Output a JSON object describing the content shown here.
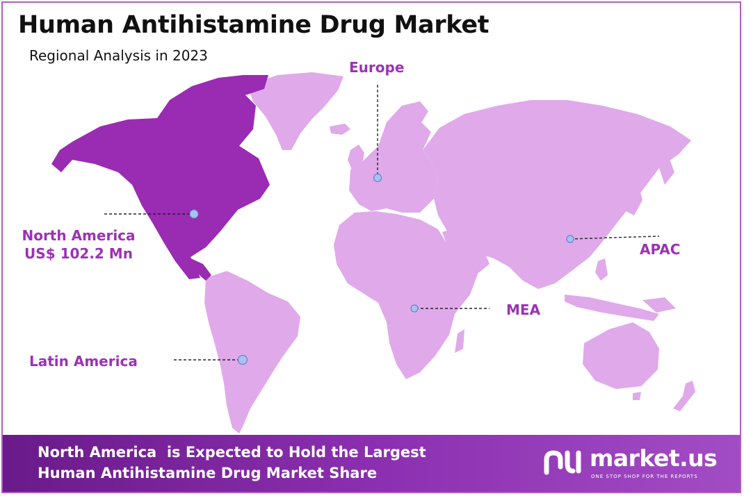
{
  "header": {
    "title": "Human Antihistamine Drug Market",
    "subtitle": "Regional Analysis in 2023"
  },
  "map": {
    "colors": {
      "highlight": "#9a2bb3",
      "land": "#e0a9ea",
      "label": "#9b32b4",
      "marker": "#a9c2ee",
      "footer": "#8b2fb0"
    },
    "regions": [
      {
        "id": "north-america",
        "name": "North America",
        "value": "US$ 102.2 Mn",
        "highlighted": true
      },
      {
        "id": "europe",
        "name": "Europe",
        "value": "",
        "highlighted": false
      },
      {
        "id": "apac",
        "name": "APAC",
        "value": "",
        "highlighted": false
      },
      {
        "id": "mea",
        "name": "MEA",
        "value": "",
        "highlighted": false
      },
      {
        "id": "latin-america",
        "name": "Latin America",
        "value": "",
        "highlighted": false
      }
    ]
  },
  "footer": {
    "line1": "North America  is Expected to Hold the Largest",
    "line2": "Human Antihistamine Drug Market Share",
    "brand_name": "market.us",
    "brand_tagline": "ONE STOP SHOP FOR THE REPORTS"
  }
}
